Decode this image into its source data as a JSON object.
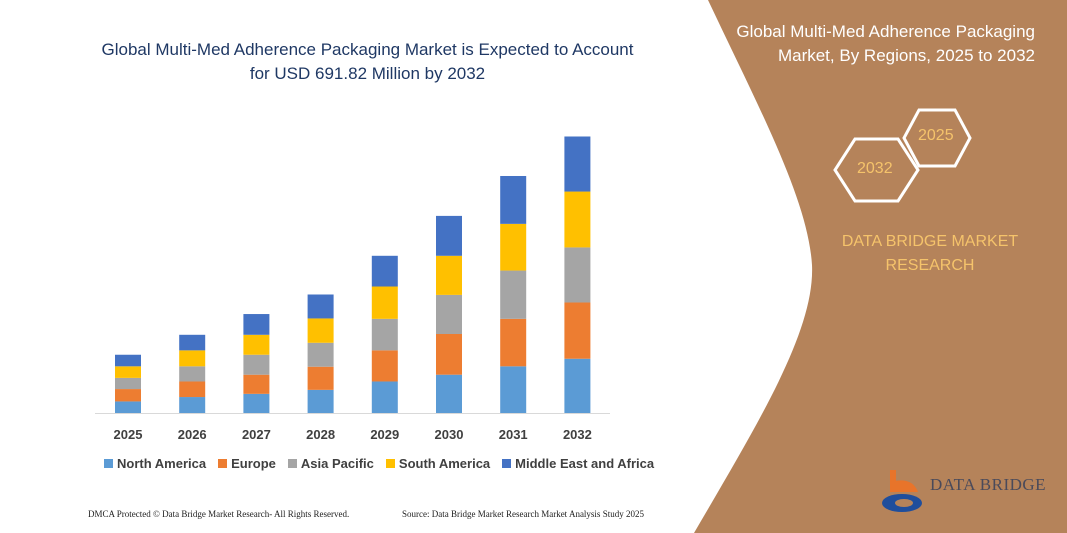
{
  "title": "Global Multi-Med Adherence Packaging Market is Expected to Account for USD 691.82 Million by 2032",
  "side_panel": {
    "title": "Global Multi-Med Adherence Packaging Market, By Regions, 2025 to 2032",
    "hex_start": "2025",
    "hex_end": "2032",
    "brand_text": "DATA BRIDGE MARKET RESEARCH",
    "logo_text": "DATA BRIDGE",
    "panel_color": "#b5835a"
  },
  "footer": {
    "left": "DMCA Protected © Data Bridge Market Research- All Rights Reserved.",
    "right": "Source: Data Bridge Market Research Market Analysis Study 2025"
  },
  "chart_data": {
    "type": "bar",
    "stacked": true,
    "title": "Global Multi-Med Adherence Packaging Market is Expected to Account for USD 691.82 Million by 2032",
    "categories": [
      "2025",
      "2026",
      "2027",
      "2028",
      "2029",
      "2030",
      "2031",
      "2032"
    ],
    "series": [
      {
        "name": "North America",
        "color": "#5b9bd5",
        "values": [
          29,
          40,
          48,
          58,
          79,
          96,
          117,
          136
        ]
      },
      {
        "name": "Europe",
        "color": "#ed7d31",
        "values": [
          31,
          39,
          48,
          58,
          78,
          102,
          119,
          141
        ]
      },
      {
        "name": "Asia Pacific",
        "color": "#a5a5a5",
        "values": [
          28,
          38,
          50,
          60,
          79,
          98,
          121,
          138
        ]
      },
      {
        "name": "South America",
        "color": "#ffc000",
        "values": [
          29,
          40,
          50,
          61,
          81,
          98,
          117,
          140
        ]
      },
      {
        "name": "Middle East and Africa",
        "color": "#4472c4",
        "values": [
          29,
          39,
          52,
          60,
          77,
          100,
          120,
          138
        ]
      }
    ],
    "xlabel": "",
    "ylabel": "",
    "grid": false,
    "legend": "bottom"
  }
}
